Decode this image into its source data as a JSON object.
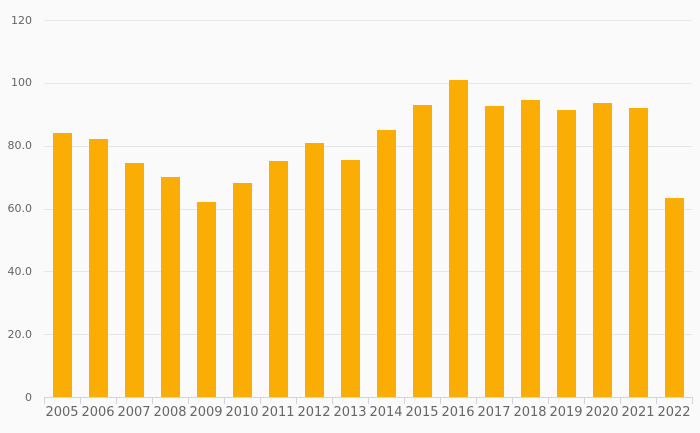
{
  "colors": {
    "background": "#fafafa",
    "bar": "#faad05",
    "gridline": "#e6e6e6",
    "axis": "#ccd6eb",
    "label": "#666666"
  },
  "chart_data": {
    "type": "bar",
    "title": "",
    "xlabel": "",
    "ylabel": "",
    "categories": [
      "2005",
      "2006",
      "2007",
      "2008",
      "2009",
      "2010",
      "2011",
      "2012",
      "2013",
      "2014",
      "2015",
      "2016",
      "2017",
      "2018",
      "2019",
      "2020",
      "2021",
      "2022"
    ],
    "values": [
      84,
      82,
      74.5,
      70,
      62,
      68,
      75,
      81,
      75.5,
      85,
      93,
      101,
      92.5,
      94.5,
      91.5,
      93.5,
      92,
      63.5
    ],
    "ylim": [
      0,
      120
    ],
    "yticks": [
      {
        "value": 0,
        "label": "0"
      },
      {
        "value": 20,
        "label": "20.0"
      },
      {
        "value": 40,
        "label": "40.0"
      },
      {
        "value": 60,
        "label": "60.0"
      },
      {
        "value": 80,
        "label": "80.0"
      },
      {
        "value": 100,
        "label": "100"
      },
      {
        "value": 120,
        "label": "120"
      }
    ],
    "grid": "horizontal",
    "legend_position": "none",
    "bar_color": "#faad05"
  }
}
